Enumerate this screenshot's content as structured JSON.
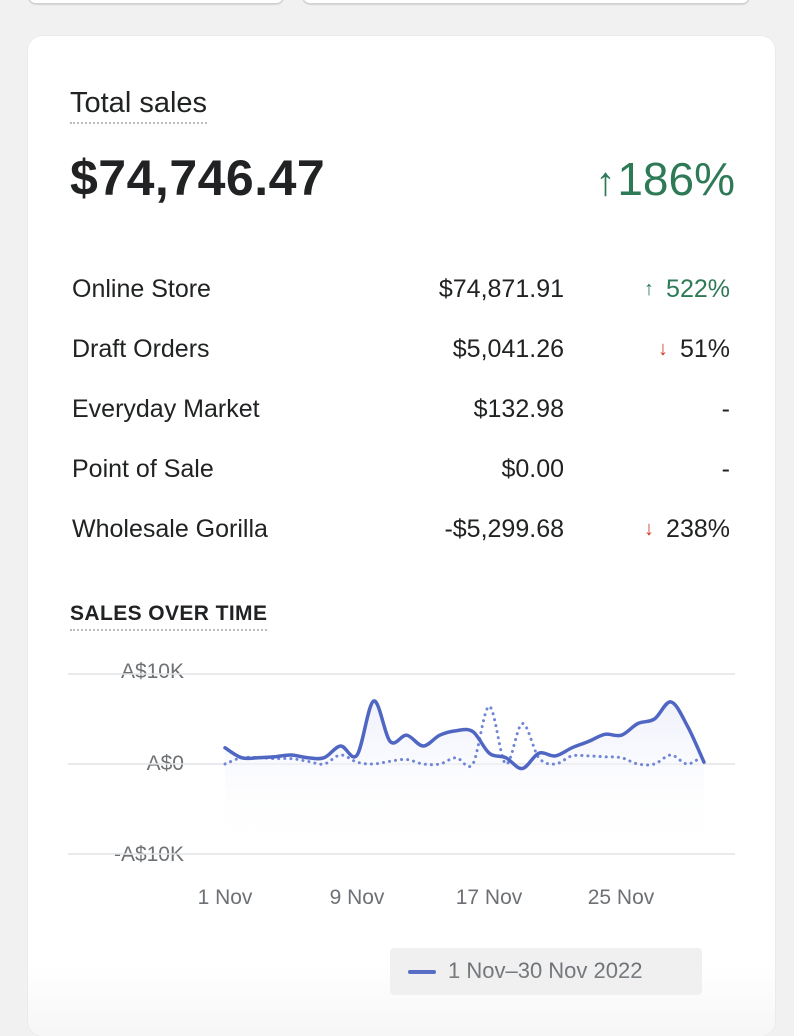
{
  "card": {
    "title": "Total sales",
    "total_value": "$74,746.47",
    "total_change": "186%",
    "total_change_direction": "up"
  },
  "breakdown": [
    {
      "label": "Online Store",
      "value": "$74,871.91",
      "change": "522%",
      "direction": "up"
    },
    {
      "label": "Draft Orders",
      "value": "$5,041.26",
      "change": "51%",
      "direction": "down"
    },
    {
      "label": "Everyday Market",
      "value": "$132.98",
      "change": "-",
      "direction": "none"
    },
    {
      "label": "Point of Sale",
      "value": "$0.00",
      "change": "-",
      "direction": "none"
    },
    {
      "label": "Wholesale Gorilla",
      "value": "-$5,299.68",
      "change": "238%",
      "direction": "down"
    }
  ],
  "colors": {
    "up": "#2e7a57",
    "down": "#d03c28",
    "series_current": "#4f66c2",
    "series_previous": "#6f86d6"
  },
  "chart_data": {
    "type": "line",
    "title": "SALES OVER TIME",
    "y_ticks": [
      "A$10K",
      "A$0",
      "-A$10K"
    ],
    "x_ticks": [
      "1 Nov",
      "9 Nov",
      "17 Nov",
      "25 Nov"
    ],
    "ylim": [
      -10000,
      10000
    ],
    "xlim": [
      1,
      30
    ],
    "grid": "horizontal",
    "legend_position": "bottom-right",
    "series": [
      {
        "name": "1 Nov–30 Nov 2022",
        "style": "solid",
        "x": [
          1,
          2,
          3,
          4,
          5,
          6,
          7,
          8,
          9,
          10,
          11,
          12,
          13,
          14,
          15,
          16,
          17,
          18,
          19,
          20,
          21,
          22,
          23,
          24,
          25,
          26,
          27,
          28,
          29,
          30
        ],
        "y": [
          1800,
          700,
          700,
          800,
          1000,
          700,
          700,
          2000,
          1000,
          7000,
          2500,
          3200,
          2000,
          3200,
          3700,
          3600,
          1200,
          700,
          -500,
          1200,
          900,
          1800,
          2500,
          3300,
          3200,
          4500,
          5000,
          6900,
          4200,
          200
        ]
      },
      {
        "name": "",
        "style": "dotted",
        "x": [
          1,
          2,
          3,
          4,
          5,
          6,
          7,
          8,
          9,
          10,
          11,
          12,
          13,
          14,
          15,
          16,
          17,
          18,
          19,
          20,
          21,
          22,
          23,
          24,
          25,
          26,
          27,
          28,
          29,
          30
        ],
        "y": [
          0,
          700,
          700,
          600,
          600,
          300,
          0,
          1000,
          200,
          0,
          300,
          500,
          0,
          0,
          700,
          0,
          6400,
          0,
          4500,
          700,
          0,
          900,
          900,
          800,
          700,
          0,
          0,
          1000,
          0,
          1000
        ]
      }
    ]
  }
}
